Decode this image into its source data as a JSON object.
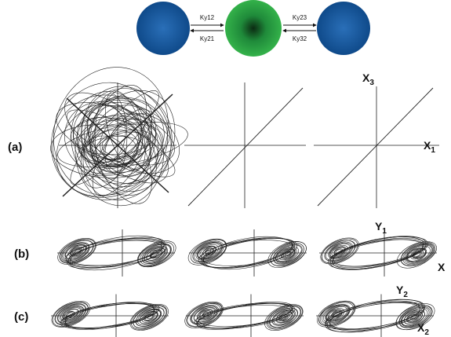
{
  "diagram": {
    "coupling": [
      "Ky12",
      "Ky21",
      "Ky23",
      "Ky32"
    ],
    "rows": [
      "(a)",
      "(b)",
      "(c)"
    ],
    "axis_labels": [
      {
        "label": "X",
        "sub": "3"
      },
      {
        "label": "X",
        "sub": "1"
      },
      {
        "label": "Y",
        "sub": "1"
      },
      {
        "label": "X",
        "sub": ""
      },
      {
        "label": "Y",
        "sub": "2"
      },
      {
        "label": "X",
        "sub": "2"
      }
    ]
  }
}
